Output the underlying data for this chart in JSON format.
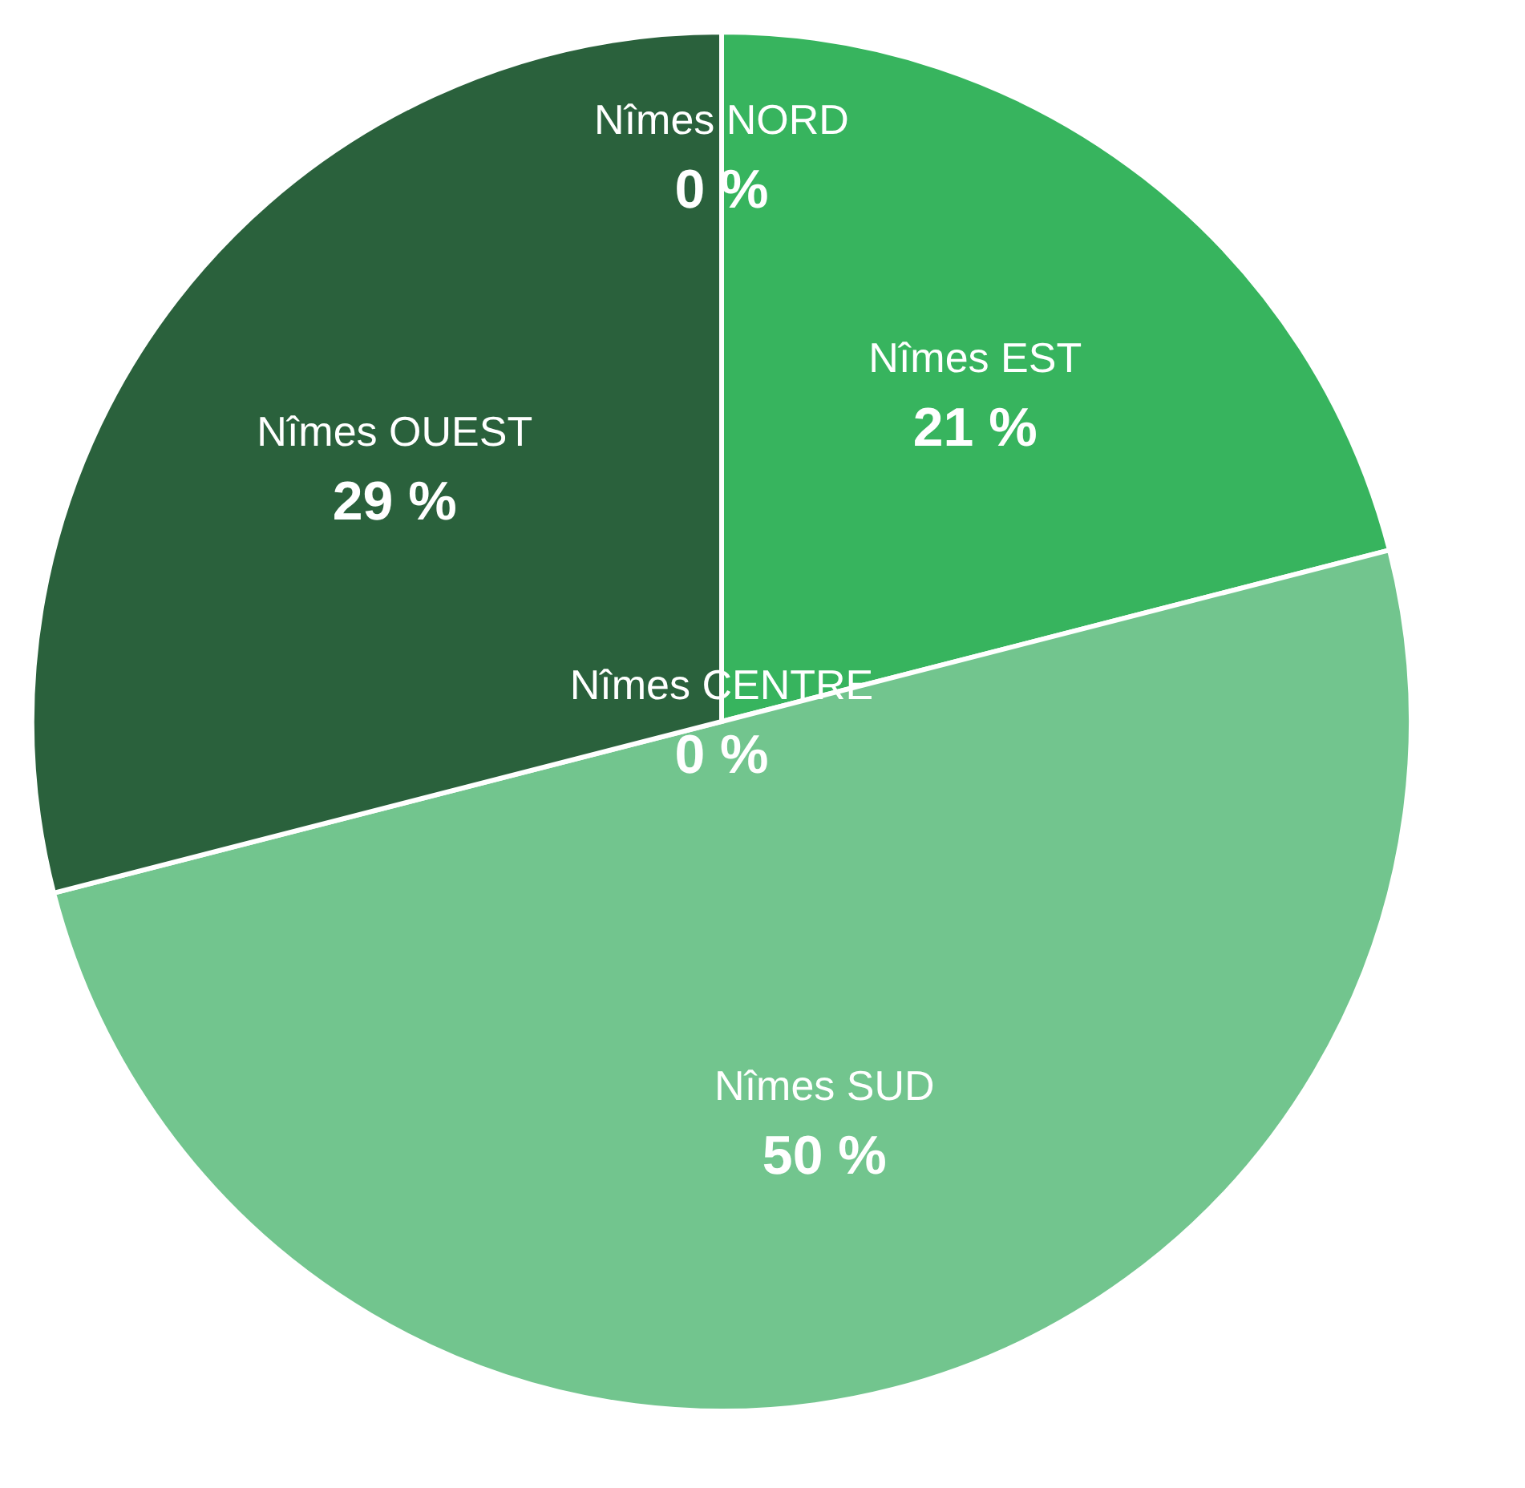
{
  "chart_data": {
    "type": "pie",
    "categories": [
      "Nîmes NORD",
      "Nîmes CENTRE",
      "Nîmes EST",
      "Nîmes SUD",
      "Nîmes OUEST"
    ],
    "values": [
      0,
      0,
      21,
      50,
      29
    ],
    "value_labels": [
      "0 %",
      "0 %",
      "21 %",
      "50 %",
      "29 %"
    ],
    "colors": [
      "#318a4b",
      "#94f2b2",
      "#37b45e",
      "#72c58e",
      "#2a613c"
    ]
  }
}
